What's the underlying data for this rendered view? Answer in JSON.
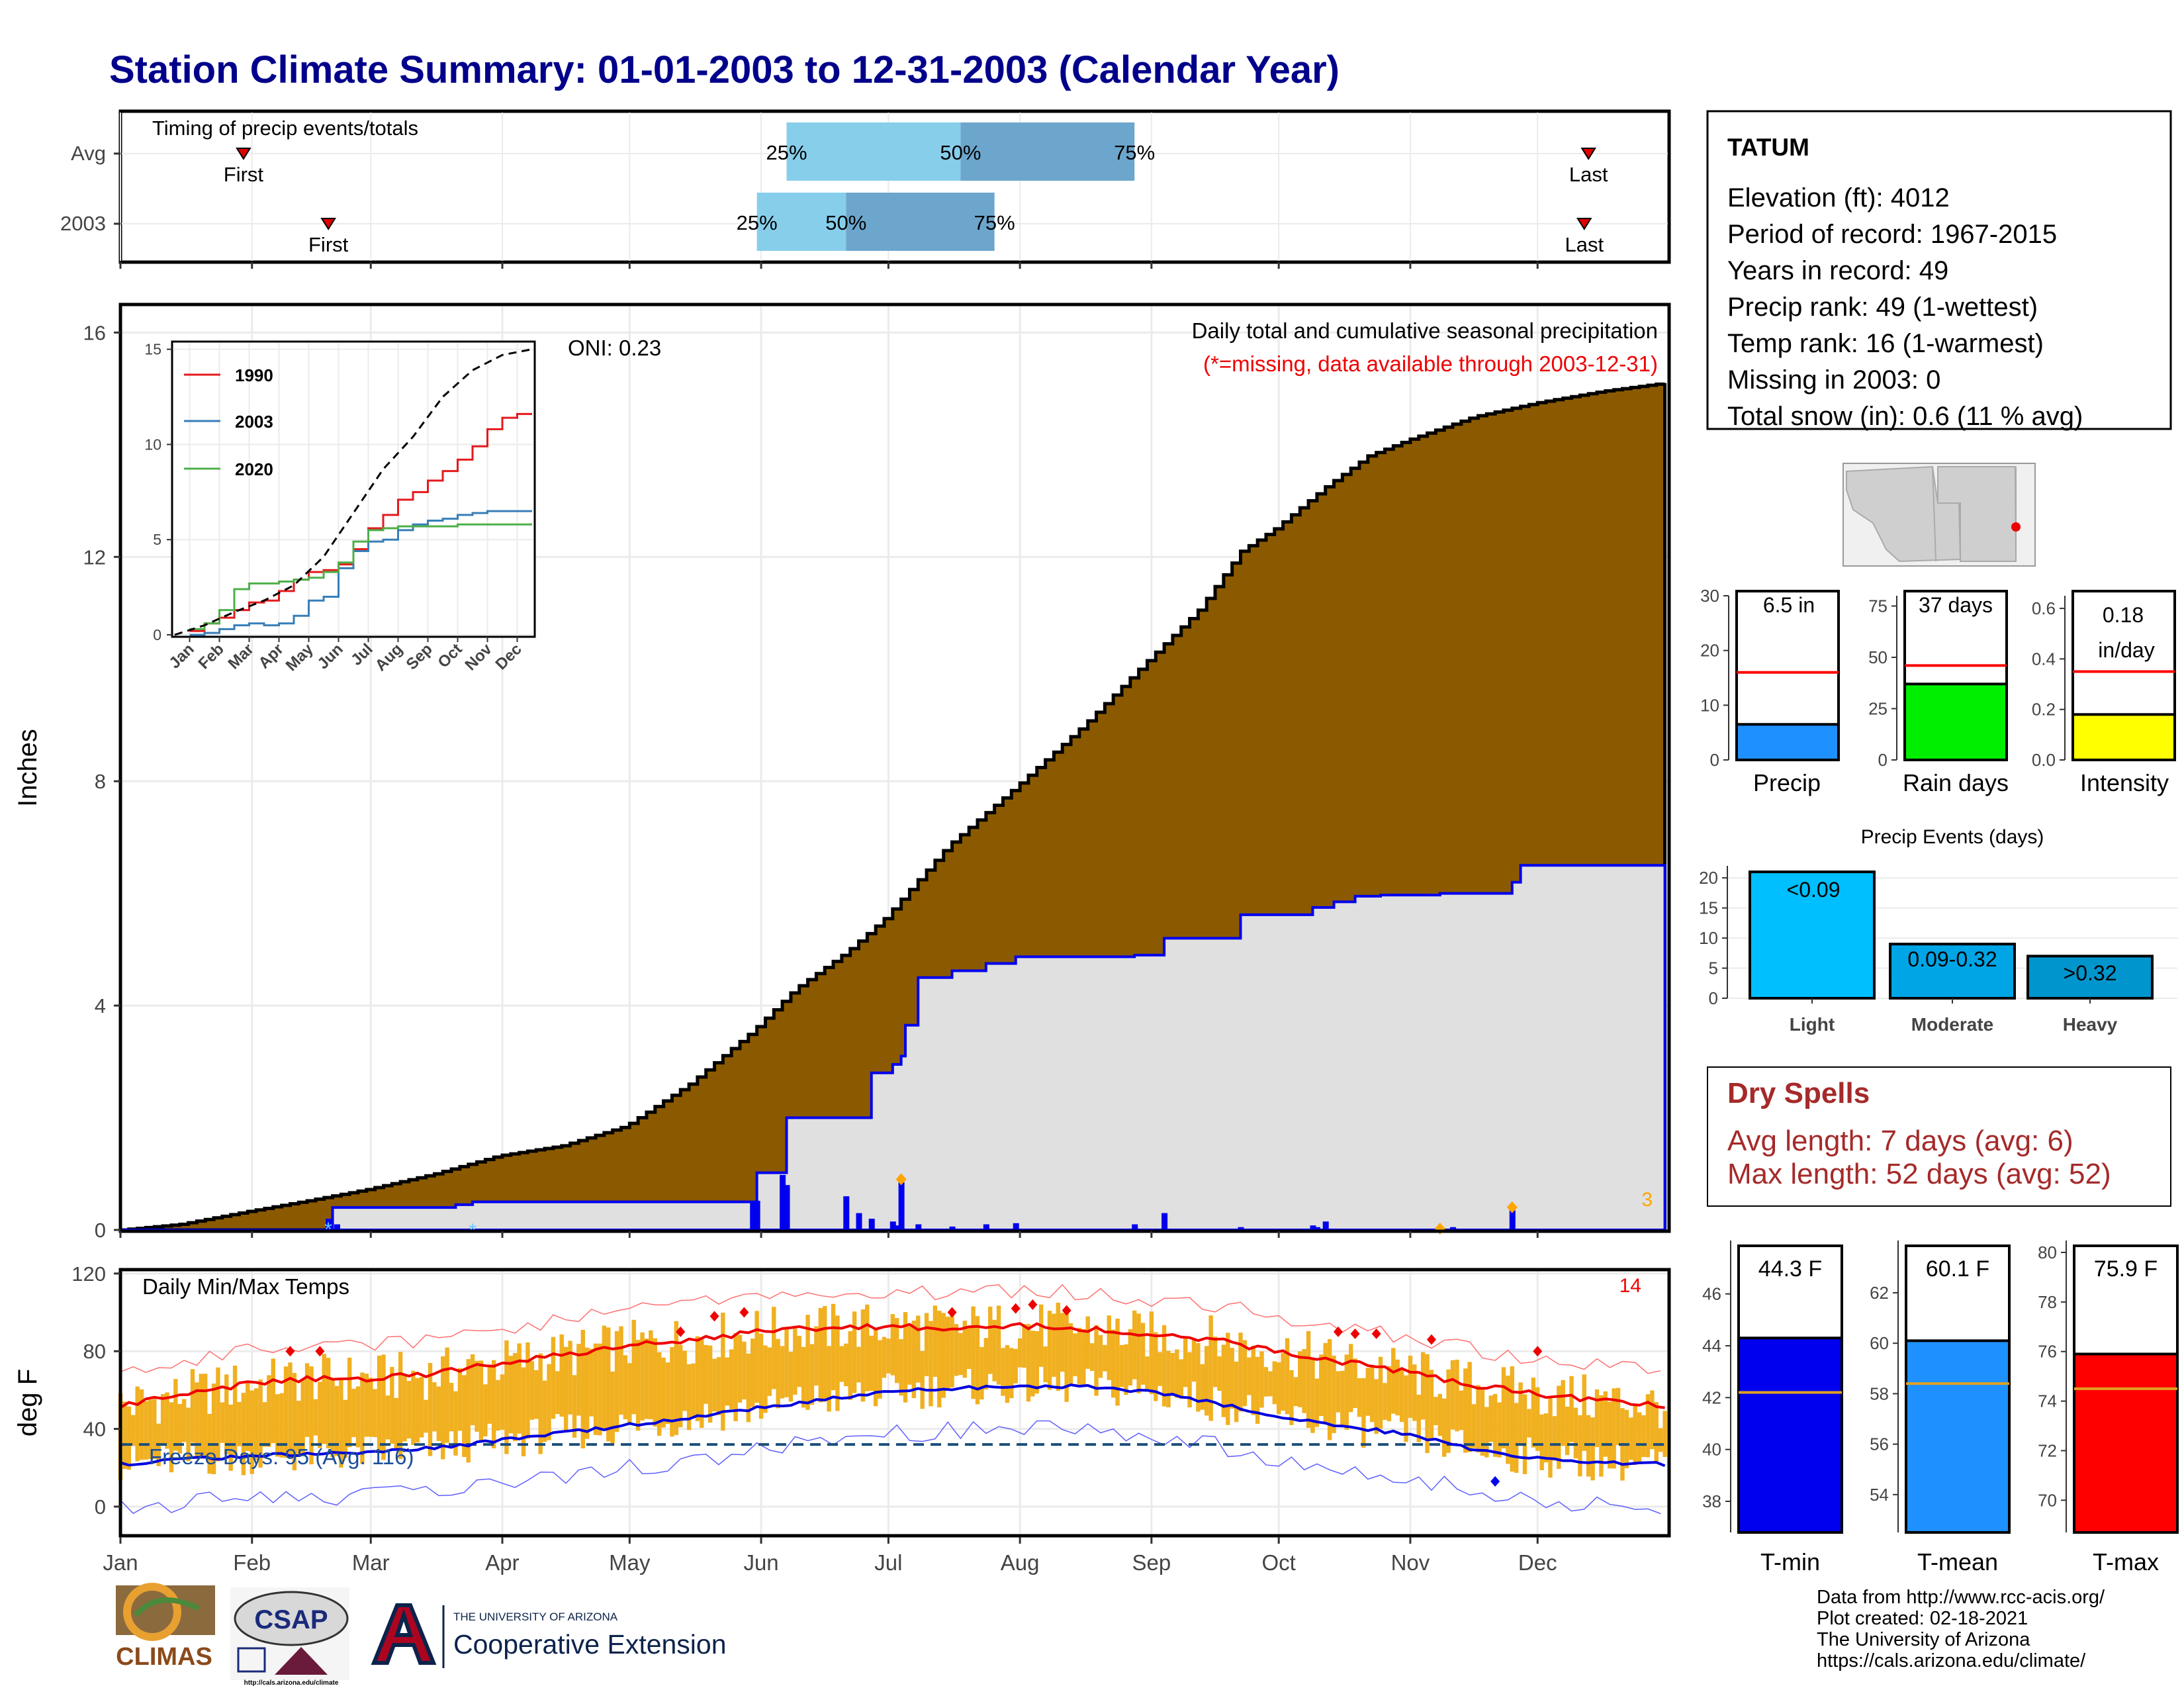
{
  "page_title": "Station Climate Summary: 01-01-2003 to 12-31-2003 (Calendar Year)",
  "months": [
    "Jan",
    "Feb",
    "Mar",
    "Apr",
    "May",
    "Jun",
    "Jul",
    "Aug",
    "Sep",
    "Oct",
    "Nov",
    "Dec"
  ],
  "timing": {
    "title": "Timing of precip events/totals",
    "rows": [
      {
        "label": "Avg",
        "first_doy": 30,
        "last_doy": 347,
        "p25_doy": 158,
        "p50_doy": 199,
        "p75_doy": 240,
        "first_label": "First",
        "last_label": "Last",
        "p25_label": "25%",
        "p50_label": "50%",
        "p75_label": "75%"
      },
      {
        "label": "2003",
        "first_doy": 50,
        "last_doy": 346,
        "p25_doy": 151,
        "p50_doy": 172,
        "p75_doy": 207,
        "first_label": "First",
        "last_label": "Last",
        "p25_label": "25%",
        "p50_label": "50%",
        "p75_label": "75%"
      }
    ],
    "colors": {
      "light": "#87ceeb",
      "dark": "#6ca6cd",
      "marker": "#dd0000"
    }
  },
  "station": {
    "name": "TATUM",
    "lines": [
      "Elevation (ft): 4012",
      "Period of record: 1967-2015",
      "Years in record: 49",
      "Precip rank: 49 (1-wettest)",
      "Temp rank: 16 (1-warmest)",
      "Missing in 2003: 0",
      "Total snow (in): 0.6 (11 % avg)"
    ]
  },
  "precip_panel": {
    "ylabel": "Inches",
    "title": "Daily total and cumulative seasonal precipitation",
    "subtitle": "(*=missing, data available through 2003-12-31)",
    "oni": "ONI: 0.23",
    "snow_count": "3",
    "colors": {
      "avg_fill": "#8b5a00",
      "obs_fill": "#e0e0e0",
      "obs_line": "#0000ee",
      "daily_bar": "#0000ee",
      "snow": "#ffa500"
    }
  },
  "inset": {
    "years": [
      "1990",
      "2003",
      "2020"
    ],
    "colors": {
      "1990": "#e41a1c",
      "2003": "#377eb8",
      "2020": "#4daf4a",
      "avg": "#000000"
    }
  },
  "bars_small": {
    "precip": {
      "value_label": "6.5 in",
      "name": "Precip",
      "value": 6.5,
      "avg": 16,
      "color": "#1e90ff"
    },
    "rain_days": {
      "value_label": "37 days",
      "name": "Rain days",
      "value": 37,
      "avg": 46,
      "color": "#00ee00"
    },
    "intensity": {
      "value_label_1": "0.18",
      "value_label_2": "in/day",
      "name": "Intensity",
      "value": 0.18,
      "avg": 0.35,
      "color": "#ffff00"
    }
  },
  "precip_events": {
    "title": "Precip Events (days)",
    "categories": [
      "Light",
      "Moderate",
      "Heavy"
    ],
    "labels": [
      "<0.09",
      "0.09-0.32",
      ">0.32"
    ],
    "values": [
      21,
      9,
      7
    ],
    "colors": [
      "#00bfff",
      "#00a5e6",
      "#0095cc"
    ]
  },
  "dry_spells": {
    "title": "Dry Spells",
    "avg_length": "Avg length: 7 days (avg: 6)",
    "max_length": "Max length: 52 days (avg: 52)"
  },
  "temp_panel": {
    "ylabel": "deg F",
    "title": "Daily Min/Max Temps",
    "freeze_days": "Freeze Days: 95 (Avg: 116)",
    "hot_count": "14",
    "colors": {
      "range_bar": "#f0b020",
      "max_line": "#ee0000",
      "min_line": "#0000dd",
      "freeze_line": "#1a4e7a"
    }
  },
  "temp_bars": {
    "tmin": {
      "label": "44.3 F",
      "name": "T-min",
      "value": 44.3,
      "avg": 42.2,
      "color": "#0000ee"
    },
    "tmean": {
      "label": "60.1 F",
      "name": "T-mean",
      "value": 60.1,
      "avg": 58.4,
      "color": "#1e90ff"
    },
    "tmax": {
      "label": "75.9 F",
      "name": "T-max",
      "value": 75.9,
      "avg": 74.5,
      "color": "#ff0000"
    }
  },
  "logos": {
    "climas": "CLIMAS",
    "csap": "CSAP",
    "csap_url": "http://cals.arizona.edu/climate",
    "ua_small": "THE UNIVERSITY OF ARIZONA",
    "coop": "Cooperative Extension"
  },
  "footer": [
    "Data from http://www.rcc-acis.org/",
    "Plot created: 02-18-2021",
    "The University of Arizona",
    "https://cals.arizona.edu/climate/"
  ],
  "chart_data": [
    {
      "type": "area",
      "title": "Daily total and cumulative seasonal precipitation",
      "ylabel": "Inches",
      "ylim": [
        0,
        16.5
      ],
      "yticks": [
        0,
        4,
        8,
        12,
        16
      ],
      "avg_cumulative": {
        "name": "avg",
        "x_doy": [
          1,
          15,
          31,
          45,
          59,
          75,
          90,
          105,
          120,
          135,
          150,
          160,
          172,
          181,
          196,
          212,
          228,
          243,
          255,
          265,
          273,
          285,
          295,
          305,
          320,
          335,
          350,
          365
        ],
        "y": [
          0,
          0.1,
          0.33,
          0.52,
          0.72,
          1.0,
          1.32,
          1.5,
          1.85,
          2.6,
          3.55,
          4.3,
          4.95,
          5.55,
          6.85,
          7.9,
          9.0,
          10.15,
          11.05,
          12.1,
          12.5,
          13.25,
          13.8,
          14.1,
          14.5,
          14.75,
          14.95,
          15.1
        ]
      },
      "obs_cumulative": {
        "name": "2003",
        "x_doy": [
          1,
          50,
          51,
          80,
          84,
          150,
          151,
          157,
          158,
          175,
          178,
          183,
          185,
          186,
          189,
          197,
          205,
          212,
          240,
          247,
          265,
          282,
          287,
          292,
          298,
          312,
          329,
          331,
          365
        ],
        "y": [
          0,
          0,
          0.4,
          0.45,
          0.5,
          0.5,
          1.02,
          1.02,
          2.0,
          2.0,
          2.8,
          2.95,
          3.1,
          3.65,
          4.5,
          4.62,
          4.75,
          4.87,
          4.9,
          5.2,
          5.62,
          5.75,
          5.85,
          5.95,
          5.97,
          6.0,
          6.2,
          6.5,
          6.5
        ]
      },
      "daily_precip": {
        "x_doy": [
          50,
          52,
          150,
          151,
          157,
          158,
          172,
          175,
          178,
          183,
          184,
          185,
          189,
          197,
          205,
          212,
          240,
          247,
          265,
          282,
          283,
          285,
          312,
          315,
          329
        ],
        "y": [
          0.2,
          0.1,
          0.5,
          0.52,
          0.98,
          0.8,
          0.6,
          0.3,
          0.2,
          0.15,
          0.08,
          0.85,
          0.1,
          0.06,
          0.1,
          0.12,
          0.1,
          0.3,
          0.05,
          0.08,
          0.05,
          0.15,
          0.05,
          0.05,
          0.35
        ]
      }
    },
    {
      "type": "line",
      "title": "",
      "xlabel": "",
      "ylabel": "",
      "xticks": [
        "Jan",
        "Feb",
        "Mar",
        "Apr",
        "May",
        "Jun",
        "Jul",
        "Aug",
        "Sep",
        "Oct",
        "Nov",
        "Dec"
      ],
      "ylim": [
        0,
        15
      ],
      "yticks": [
        0,
        5,
        10,
        15
      ],
      "series": [
        {
          "name": "1990",
          "x_month": [
            0.5,
            1.0,
            1.5,
            2.0,
            2.5,
            3.0,
            3.5,
            4.0,
            4.5,
            5.0,
            5.5,
            6.0,
            6.5,
            7.0,
            7.5,
            8.0,
            8.5,
            9.0,
            9.5,
            10.0,
            10.5,
            11.0,
            11.5
          ],
          "y": [
            0.2,
            0.6,
            0.9,
            1.3,
            1.7,
            1.8,
            2.3,
            2.9,
            3.3,
            3.4,
            3.7,
            4.5,
            5.6,
            6.3,
            7.1,
            7.5,
            8.1,
            8.6,
            9.2,
            9.9,
            10.8,
            11.4,
            11.6
          ]
        },
        {
          "name": "2003",
          "x_month": [
            0.5,
            1.0,
            1.5,
            2.0,
            2.5,
            3.0,
            3.5,
            4.0,
            4.5,
            5.0,
            5.5,
            6.0,
            6.5,
            7.0,
            7.5,
            8.0,
            8.5,
            9.0,
            9.5,
            10.0,
            10.5,
            11.0,
            11.5
          ],
          "y": [
            0.0,
            0.1,
            0.3,
            0.5,
            0.6,
            0.5,
            0.6,
            1.0,
            1.8,
            2.0,
            3.5,
            4.4,
            4.9,
            5.0,
            5.5,
            5.8,
            6.0,
            6.1,
            6.3,
            6.4,
            6.5,
            6.5,
            6.5
          ]
        },
        {
          "name": "2020",
          "x_month": [
            0.5,
            1.0,
            1.5,
            2.0,
            2.5,
            3.0,
            3.5,
            4.0,
            4.5,
            5.0,
            5.5,
            6.0,
            6.5,
            7.0,
            7.5,
            8.0,
            8.5,
            9.0,
            9.5,
            10.0,
            10.5,
            11.0,
            11.5
          ],
          "y": [
            0.3,
            0.6,
            1.3,
            2.4,
            2.7,
            2.7,
            2.8,
            2.9,
            3.0,
            3.3,
            3.8,
            4.9,
            5.5,
            5.6,
            5.7,
            5.7,
            5.7,
            5.7,
            5.8,
            5.8,
            5.8,
            5.8,
            5.8
          ]
        },
        {
          "name": "avg",
          "x_month": [
            0.0,
            1.0,
            2.0,
            3.0,
            4.0,
            5.0,
            6.0,
            7.0,
            8.0,
            9.0,
            10.0,
            11.0,
            12.0
          ],
          "y": [
            0,
            0.5,
            1.2,
            1.8,
            2.6,
            4.1,
            6.4,
            8.7,
            10.4,
            12.5,
            13.9,
            14.7,
            15.0
          ]
        }
      ]
    },
    {
      "type": "line",
      "title": "Daily Min/Max Temps",
      "ylabel": "deg F",
      "ylim": [
        -15,
        122
      ],
      "yticks": [
        0,
        40,
        80,
        120
      ],
      "series": [
        {
          "name": "max",
          "x_doy": [
            1,
            15,
            31,
            46,
            60,
            74,
            91,
            105,
            121,
            135,
            152,
            166,
            182,
            196,
            213,
            227,
            244,
            258,
            274,
            288,
            305,
            319,
            335,
            349,
            365
          ],
          "y": [
            52,
            57,
            63,
            66,
            66,
            68,
            74,
            78,
            83,
            86,
            90,
            92,
            93,
            92,
            93,
            92,
            88,
            86,
            80,
            75,
            69,
            63,
            58,
            55,
            52
          ]
        },
        {
          "name": "min",
          "x_doy": [
            1,
            15,
            31,
            46,
            60,
            74,
            91,
            105,
            121,
            135,
            152,
            166,
            182,
            196,
            213,
            227,
            244,
            258,
            274,
            288,
            305,
            319,
            335,
            349,
            365
          ],
          "y": [
            22,
            24,
            26,
            27,
            28,
            30,
            34,
            38,
            42,
            46,
            51,
            55,
            59,
            61,
            62,
            62,
            59,
            54,
            46,
            42,
            37,
            30,
            25,
            23,
            22
          ]
        },
        {
          "name": "freeze",
          "x_doy": [
            1,
            365
          ],
          "y": [
            32,
            32
          ]
        }
      ]
    },
    {
      "type": "bar",
      "title": "Precip Events (days)",
      "categories": [
        "Light",
        "Moderate",
        "Heavy"
      ],
      "values": [
        21,
        9,
        7
      ],
      "ylim": [
        0,
        22
      ]
    },
    {
      "type": "bar",
      "categories": [
        "Precip",
        "Rain days",
        "Intensity"
      ],
      "values": [
        6.5,
        37,
        0.18
      ],
      "avg": [
        16,
        46,
        0.35
      ],
      "ylims": [
        [
          0,
          30
        ],
        [
          0,
          80
        ],
        [
          0,
          0.65
        ]
      ]
    },
    {
      "type": "bar",
      "categories": [
        "T-min",
        "T-mean",
        "T-max"
      ],
      "values": [
        44.3,
        60.1,
        75.9
      ],
      "avg": [
        42.2,
        58.4,
        74.5
      ],
      "ylims": [
        [
          36.5,
          47.5
        ],
        [
          52.5,
          63.5
        ],
        [
          68.5,
          80
        ]
      ]
    }
  ]
}
